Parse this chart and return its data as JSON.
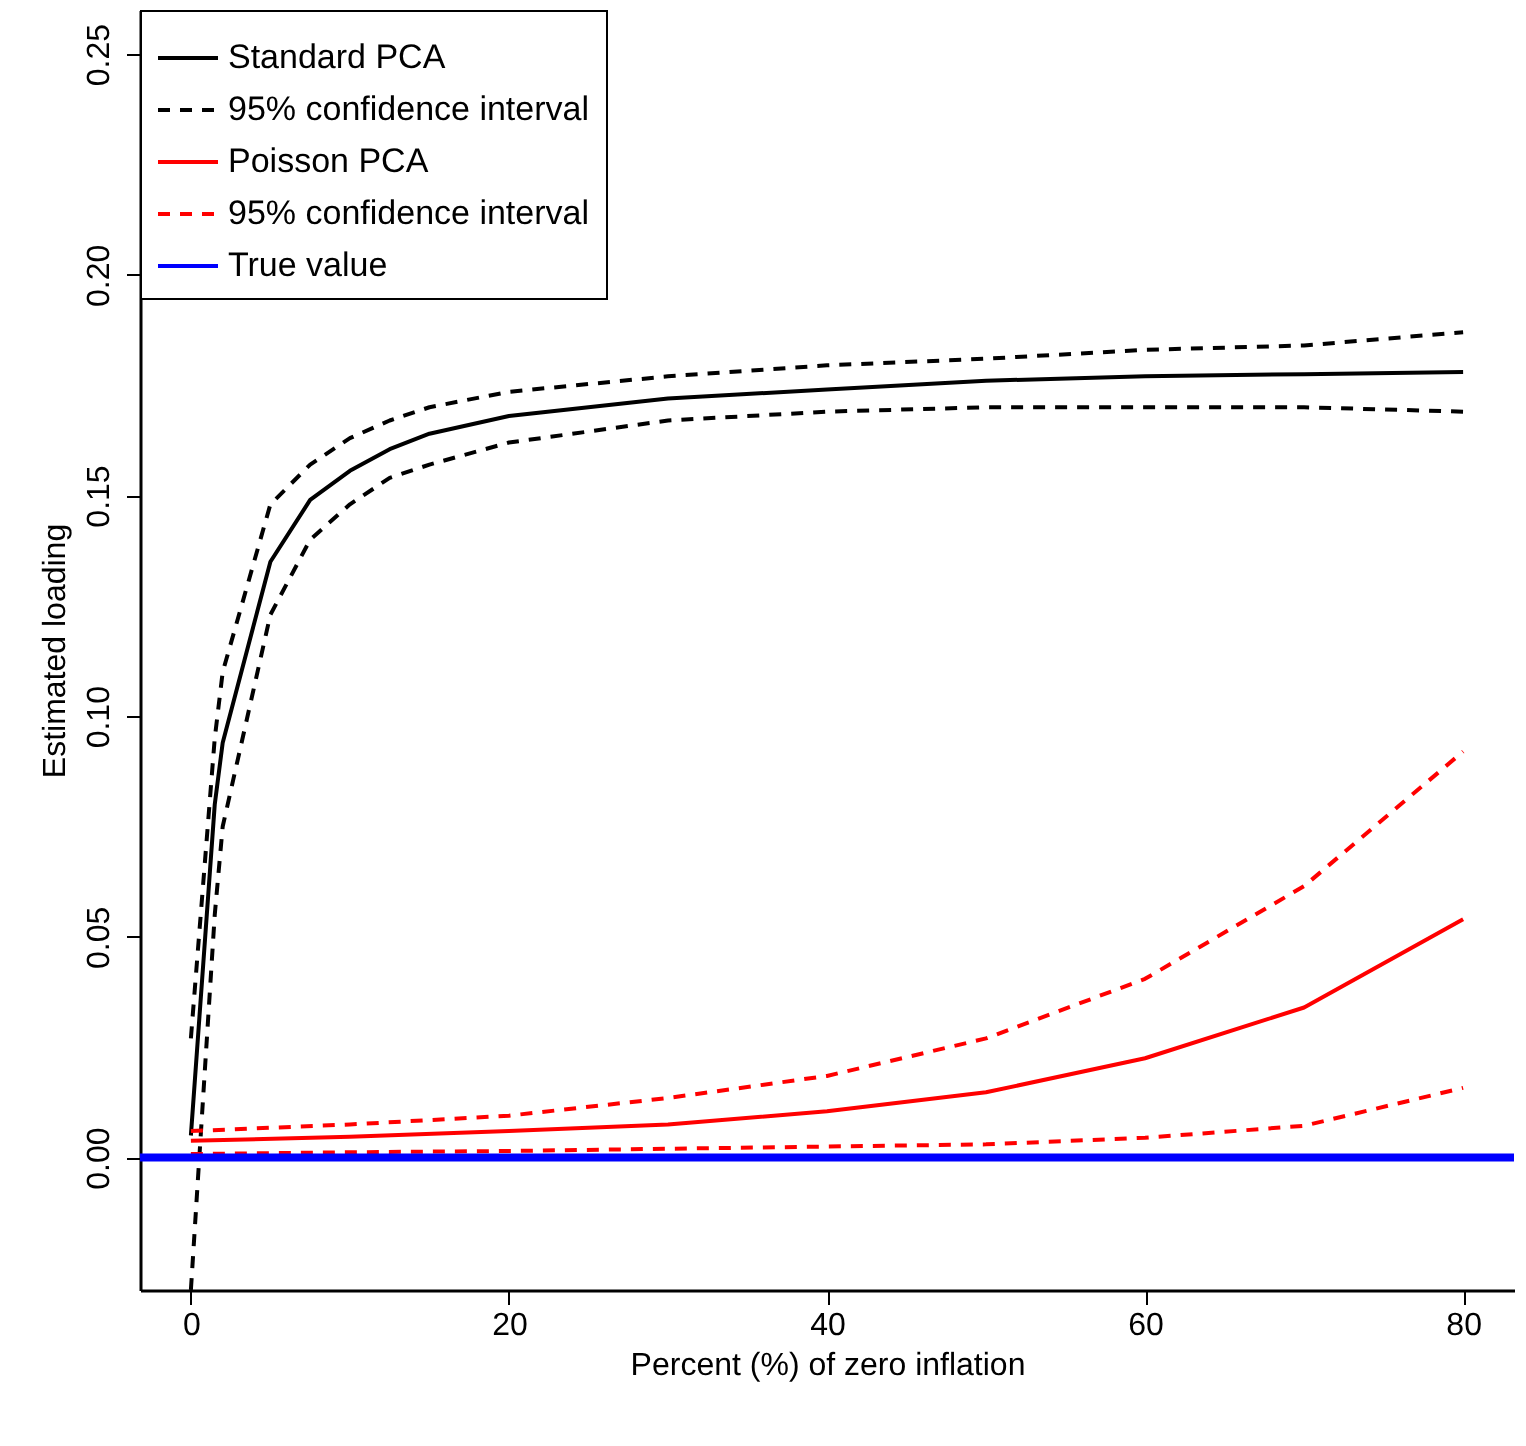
{
  "chart_data": {
    "type": "line",
    "xlabel": "Percent (%) of zero inflation",
    "ylabel": "Estimated loading",
    "xlim": [
      -3.2,
      83.2
    ],
    "xticks": [
      0,
      20,
      40,
      60,
      80
    ],
    "ylim": [
      -0.03,
      0.26
    ],
    "yticks": [
      {
        "value": 0,
        "label": "0.00"
      },
      {
        "value": 0.05,
        "label": "0.05"
      },
      {
        "value": 0.1,
        "label": "0.10"
      },
      {
        "value": 0.15,
        "label": "0.15"
      },
      {
        "value": 0.2,
        "label": "0.20"
      },
      {
        "value": 0.25,
        "label": "0.25"
      }
    ],
    "grid": false,
    "legend": "top left",
    "series": [
      {
        "name": "Standard PCA",
        "color": "#000000",
        "line_style": "solid",
        "x": [
          0,
          1.5,
          2,
          5,
          7.5,
          10,
          12.5,
          15,
          20,
          30,
          40,
          50,
          60,
          70,
          80
        ],
        "values": [
          0.005,
          0.08,
          0.094,
          0.135,
          0.149,
          0.1556,
          0.1605,
          0.164,
          0.168,
          0.172,
          0.174,
          0.176,
          0.177,
          0.1775,
          0.178
        ]
      },
      {
        "name": "95% confidence interval",
        "color": "#000000",
        "line_style": "dashed",
        "x": [
          0,
          1.5,
          2,
          5,
          7.5,
          10,
          12.5,
          15,
          20,
          30,
          40,
          50,
          60,
          70,
          80
        ],
        "values": [
          0.027,
          0.095,
          0.11,
          0.148,
          0.157,
          0.163,
          0.167,
          0.17,
          0.1735,
          0.177,
          0.1795,
          0.181,
          0.183,
          0.184,
          0.187
        ]
      },
      {
        "color": "#000000",
        "line_style": "dashed",
        "x": [
          0,
          1.5,
          2,
          5,
          7.5,
          10,
          12.5,
          15,
          20,
          30,
          40,
          50,
          60,
          70,
          80
        ],
        "values": [
          -0.03,
          0.055,
          0.075,
          0.123,
          0.14,
          0.148,
          0.154,
          0.157,
          0.162,
          0.167,
          0.169,
          0.17,
          0.17,
          0.17,
          0.169
        ]
      },
      {
        "name": "Poisson PCA",
        "color": "#ff0000",
        "line_style": "solid",
        "x": [
          0,
          10,
          20,
          30,
          40,
          50,
          60,
          70,
          80
        ],
        "values": [
          0.0038,
          0.0047,
          0.006,
          0.0075,
          0.0105,
          0.0148,
          0.0225,
          0.034,
          0.054
        ]
      },
      {
        "name": "95% confidence interval",
        "color": "#ff0000",
        "line_style": "dashed",
        "x": [
          0,
          10,
          20,
          30,
          40,
          50,
          60,
          70,
          80
        ],
        "values": [
          0.006,
          0.0075,
          0.0095,
          0.0135,
          0.0185,
          0.027,
          0.0405,
          0.0615,
          0.092
        ]
      },
      {
        "color": "#ff0000",
        "line_style": "dashed",
        "x": [
          0,
          10,
          20,
          30,
          40,
          50,
          60,
          70,
          80
        ],
        "values": [
          0.0008,
          0.0012,
          0.0015,
          0.002,
          0.0025,
          0.003,
          0.0045,
          0.0072,
          0.0158
        ]
      }
    ],
    "ref_lines": [
      {
        "axis": "y",
        "value": 0,
        "label": "True value",
        "color": "#0000ff"
      }
    ]
  }
}
